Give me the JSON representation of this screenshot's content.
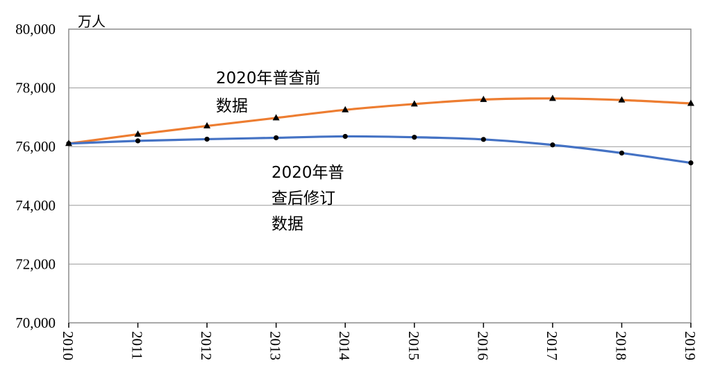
{
  "chart_data": {
    "type": "line",
    "unit_label": "万人",
    "x": [
      "2010",
      "2011",
      "2012",
      "2013",
      "2014",
      "2015",
      "2016",
      "2017",
      "2018",
      "2019"
    ],
    "y_ticks": [
      "70,000",
      "72,000",
      "74,000",
      "76,000",
      "78,000",
      "80,000"
    ],
    "ylim": [
      70000,
      80000
    ],
    "grid": "horizontal",
    "series": [
      {
        "name": "2020年普查前数据",
        "label_lines": [
          "2020年普查前",
          "数据"
        ],
        "color": "#ED7D31",
        "marker": "triangle",
        "values": [
          76105,
          76420,
          76704,
          76977,
          77253,
          77451,
          77603,
          77640,
          77586,
          77471
        ]
      },
      {
        "name": "2020年普查后修订数据",
        "label_lines": [
          "2020年普",
          "查后修订",
          "数据"
        ],
        "color": "#4472C4",
        "marker": "circle",
        "values": [
          76105,
          76196,
          76254,
          76301,
          76349,
          76320,
          76245,
          76058,
          75782,
          75447
        ]
      }
    ]
  }
}
